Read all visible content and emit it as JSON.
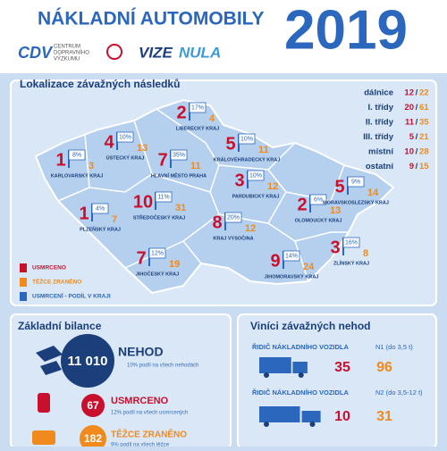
{
  "header": {
    "title": "NÁKLADNÍ AUTOMOBILY",
    "year": "2019",
    "logo_cdv": "CDV",
    "logo_cdv_text": [
      "CENTRUM",
      "DOPRAVNÍHO",
      "VÝZKUMU"
    ],
    "logo_vize": "VIZE",
    "logo_nula": "NULA"
  },
  "map": {
    "title": "Lokalizace závažných následků",
    "separator": "/",
    "roads": [
      {
        "name": "dálnice",
        "killed": 12,
        "injured": 22
      },
      {
        "name": "I. třídy",
        "killed": 20,
        "injured": 61
      },
      {
        "name": "II. třídy",
        "killed": 11,
        "injured": 35
      },
      {
        "name": "III. třídy",
        "killed": 5,
        "injured": 21
      },
      {
        "name": "místní",
        "killed": 10,
        "injured": 28
      },
      {
        "name": "ostatní",
        "killed": 9,
        "injured": 15
      }
    ],
    "regions": [
      {
        "name": "KARLOVARSKÝ KRAJ",
        "killed": 1,
        "injured": 3,
        "share": "8%"
      },
      {
        "name": "ÚSTECKÝ KRAJ",
        "killed": 4,
        "injured": 13,
        "share": "10%"
      },
      {
        "name": "LIBERECKÝ KRAJ",
        "killed": 2,
        "injured": 4,
        "share": "17%"
      },
      {
        "name": "KRÁLOVÉHRADECKÝ KRAJ",
        "killed": 5,
        "injured": 11,
        "share": "10%"
      },
      {
        "name": "HLAVNÍ MĚSTO PRAHA",
        "killed": 7,
        "injured": 11,
        "share": "35%"
      },
      {
        "name": "PARDUBICKÝ KRAJ",
        "killed": 3,
        "injured": 12,
        "share": "10%"
      },
      {
        "name": "OLOMOUCKÝ KRAJ",
        "killed": 2,
        "injured": 13,
        "share": "6%"
      },
      {
        "name": "MORAVSKOSLEZSKÝ KRAJ",
        "killed": 5,
        "injured": 14,
        "share": "9%"
      },
      {
        "name": "PLZEŇSKÝ KRAJ",
        "killed": 1,
        "injured": 7,
        "share": "4%"
      },
      {
        "name": "STŘEDOČESKÝ KRAJ",
        "killed": 10,
        "injured": 31,
        "share": "11%"
      },
      {
        "name": "KRAJ VYSOČINA",
        "killed": 8,
        "injured": 12,
        "share": "20%"
      },
      {
        "name": "JIHOČESKÝ KRAJ",
        "killed": 7,
        "injured": 19,
        "share": "12%"
      },
      {
        "name": "JIHOMORAVSKÝ KRAJ",
        "killed": 9,
        "injured": 24,
        "share": "14%"
      },
      {
        "name": "ZLÍNSKÝ KRAJ",
        "killed": 3,
        "injured": 8,
        "share": "16%"
      }
    ],
    "legend": [
      "USMRCENO",
      "TĚŽCE ZRANĚNO",
      "USMRCENÍ - PODÍL V KRAJI"
    ]
  },
  "balance": {
    "title": "Základní bilance",
    "items": [
      {
        "value": "11 010",
        "label": "NEHOD",
        "note": "10% podíl na všech nehodách"
      },
      {
        "value": "67",
        "label": "USMRCENO",
        "note": "12% podíl na všech usmrcených"
      },
      {
        "value": "182",
        "label": "TĚŽCE ZRANĚNO",
        "note": "9% podíl na všech těžce"
      }
    ]
  },
  "culprits": {
    "title": "Viníci závažných nehod",
    "rows": [
      {
        "label": "ŘIDIČ NÁKLADNÍHO VOZIDLA",
        "class": "N1 (do 3,5 t)",
        "killed": 35,
        "injured": 96
      },
      {
        "label": "ŘIDIČ NÁKLADNÍHO VOZIDLA",
        "class": "N2 (do 3,5-12 t)",
        "killed": 10,
        "injured": 31
      }
    ]
  }
}
